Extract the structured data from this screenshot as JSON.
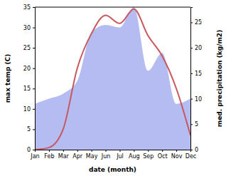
{
  "chart_data": {
    "type": "line",
    "x_label": "date (month)",
    "y_label": "max temp (C)",
    "y2_label": "med. precipitation (kg/m2)",
    "categories": [
      "Jan",
      "Feb",
      "Mar",
      "Apr",
      "May",
      "Jun",
      "Jul",
      "Aug",
      "Sep",
      "Oct",
      "Nov",
      "Dec"
    ],
    "ylim": [
      0,
      35
    ],
    "yticks": [
      0,
      5,
      10,
      15,
      20,
      25,
      30,
      35
    ],
    "y2lim": [
      0,
      28
    ],
    "y2ticks": [
      0,
      5,
      10,
      15,
      20,
      25
    ],
    "series": [
      {
        "type": "area",
        "axis": "y2",
        "color": "#b4bcf2",
        "values": [
          9,
          10,
          11,
          13.5,
          23,
          24.5,
          24,
          28,
          15.5,
          19,
          9,
          10
        ]
      },
      {
        "type": "line",
        "color": "#c8575e",
        "values": [
          0,
          0.5,
          5,
          20,
          28.5,
          33,
          31,
          34.5,
          28,
          23,
          15,
          3.5
        ]
      }
    ]
  }
}
